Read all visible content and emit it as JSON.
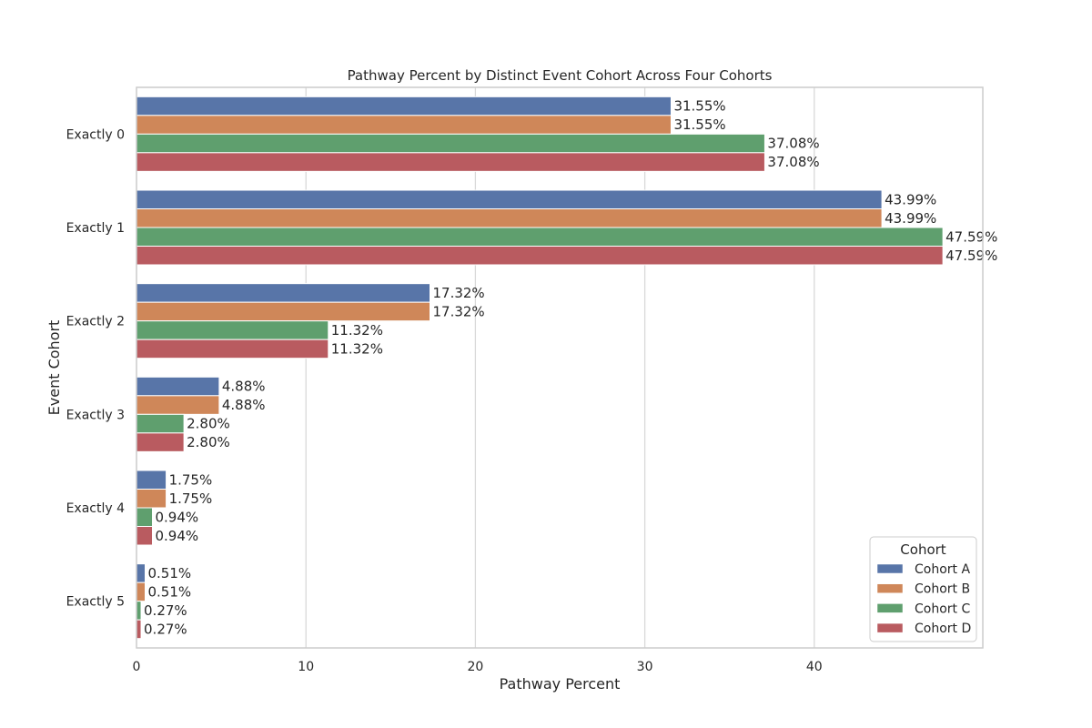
{
  "chart_data": {
    "type": "bar",
    "orientation": "horizontal",
    "title": "Pathway Percent by Distinct Event Cohort Across Four Cohorts",
    "xlabel": "Pathway Percent",
    "ylabel": "Event Cohort",
    "xlim": [
      0,
      50
    ],
    "xticks": [
      0,
      10,
      20,
      30,
      40
    ],
    "grid": true,
    "legend_title": "Cohort",
    "legend_position": "lower-right",
    "categories": [
      "Exactly 0",
      "Exactly 1",
      "Exactly 2",
      "Exactly 3",
      "Exactly 4",
      "Exactly 5"
    ],
    "series": [
      {
        "name": "Cohort A",
        "color": "#5875a8",
        "values": [
          31.55,
          43.99,
          17.32,
          4.88,
          1.75,
          0.51
        ],
        "labels": [
          "31.55%",
          "43.99%",
          "17.32%",
          "4.88%",
          "1.75%",
          "0.51%"
        ]
      },
      {
        "name": "Cohort B",
        "color": "#cf8759",
        "values": [
          31.55,
          43.99,
          17.32,
          4.88,
          1.75,
          0.51
        ],
        "labels": [
          "31.55%",
          "43.99%",
          "17.32%",
          "4.88%",
          "1.75%",
          "0.51%"
        ]
      },
      {
        "name": "Cohort C",
        "color": "#5f9f6e",
        "values": [
          37.08,
          47.59,
          11.32,
          2.8,
          0.94,
          0.27
        ],
        "labels": [
          "37.08%",
          "47.59%",
          "11.32%",
          "2.80%",
          "0.94%",
          "0.27%"
        ]
      },
      {
        "name": "Cohort D",
        "color": "#b95b60",
        "values": [
          37.08,
          47.59,
          11.32,
          2.8,
          0.94,
          0.27
        ],
        "labels": [
          "37.08%",
          "47.59%",
          "11.32%",
          "2.80%",
          "0.94%",
          "0.27%"
        ]
      }
    ]
  }
}
